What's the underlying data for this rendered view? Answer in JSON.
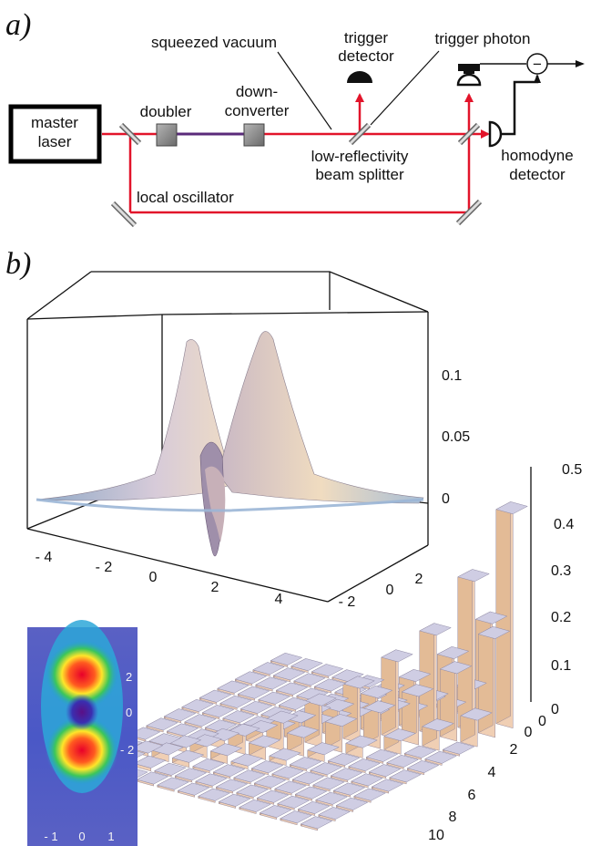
{
  "panel_a": {
    "label": "a)",
    "master_laser": [
      "master",
      "laser"
    ],
    "doubler": "doubler",
    "down_converter": [
      "down-",
      "converter"
    ],
    "squeezed_vacuum": "squeezed vacuum",
    "trigger_detector": [
      "trigger",
      "detector"
    ],
    "trigger_photon": "trigger photon",
    "minus_sign": "−",
    "low_reflectivity_bs": [
      "low-reflectivity",
      "beam splitter"
    ],
    "homodyne_detector": [
      "homodyne",
      "detector"
    ],
    "local_oscillator": "local oscillator",
    "colors": {
      "beam": "#e2142a",
      "pump": "#5a2a7a"
    }
  },
  "panel_b": {
    "label": "b)",
    "surface_x_ticks": [
      "- 4",
      "- 2",
      "0",
      "2",
      "4"
    ],
    "surface_y_ticks": [
      "- 2",
      "0",
      "2"
    ],
    "surface_z_ticks": [
      "0.1",
      "0.05",
      "0"
    ],
    "density_z_ticks": [
      "0.5",
      "0.4",
      "0.3",
      "0.2",
      "0.1",
      "0"
    ],
    "density_index_ticks": [
      "0",
      "2",
      "4",
      "6",
      "8",
      "10"
    ],
    "density_corner_zero": "0",
    "contour_y_ticks": [
      "2",
      "0",
      "- 2"
    ],
    "contour_x_ticks": [
      "- 1",
      "0",
      "1"
    ],
    "density_matrix": {
      "type": "bar3d",
      "size": 12,
      "diagonal_values": [
        0.47,
        0.33,
        0.22,
        0.17,
        0.12,
        0.09,
        0.06,
        0.04,
        0.025,
        0.015,
        0.01,
        0.005
      ]
    }
  }
}
